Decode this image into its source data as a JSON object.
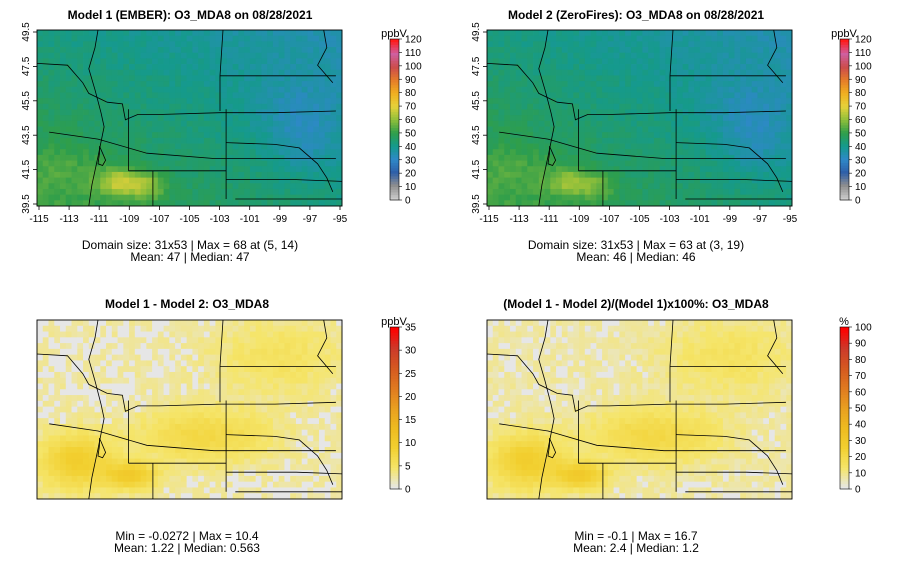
{
  "panels": [
    {
      "id": "p1",
      "title": "Model 1 (EMBER): O3_MDA8 on 08/28/2021",
      "unit": "ppbV",
      "colorbar_ticks": [
        "0",
        "10",
        "20",
        "30",
        "40",
        "50",
        "60",
        "70",
        "80",
        "90",
        "100",
        "110",
        "120"
      ],
      "lat_ticks": [
        "39.5",
        "41.5",
        "43.5",
        "45.5",
        "47.5",
        "49.5"
      ],
      "lon_ticks": [
        "-115",
        "-113",
        "-111",
        "-109",
        "-107",
        "-105",
        "-103",
        "-101",
        "-99",
        "-97",
        "-95"
      ],
      "stat_line1": "Domain size: 31x53 | Max = 68 at (5, 14)",
      "stat_line2": "Mean: 47 |  Median: 47",
      "field": "ember"
    },
    {
      "id": "p2",
      "title": "Model 2 (ZeroFires): O3_MDA8 on 08/28/2021",
      "unit": "ppbV",
      "colorbar_ticks": [
        "0",
        "10",
        "20",
        "30",
        "40",
        "50",
        "60",
        "70",
        "80",
        "90",
        "100",
        "110",
        "120"
      ],
      "lat_ticks": [
        "39.5",
        "41.5",
        "43.5",
        "45.5",
        "47.5",
        "49.5"
      ],
      "lon_ticks": [
        "-115",
        "-113",
        "-111",
        "-109",
        "-107",
        "-105",
        "-103",
        "-101",
        "-99",
        "-97",
        "-95"
      ],
      "stat_line1": "Domain size: 31x53 | Max = 63 at (3, 19)",
      "stat_line2": "Mean: 46 |  Median: 46",
      "field": "zerofires"
    },
    {
      "id": "p3",
      "title": "Model 1 - Model 2: O3_MDA8",
      "unit": "ppbV",
      "colorbar_ticks": [
        "0",
        "5",
        "10",
        "15",
        "20",
        "25",
        "30",
        "35"
      ],
      "stat_line1": "Min = -0.0272 | Max = 10.4",
      "stat_line2": "Mean: 1.22 |  Median: 0.563",
      "field": "diff"
    },
    {
      "id": "p4",
      "title": "(Model 1 - Model 2)/(Model 1)x100%: O3_MDA8",
      "unit": "%",
      "colorbar_ticks": [
        "0",
        "10",
        "20",
        "30",
        "40",
        "50",
        "60",
        "70",
        "80",
        "90",
        "100"
      ],
      "stat_line1": "Min = -0.1 | Max = 16.7",
      "stat_line2": "Mean: 2.4 |  Median: 1.2",
      "field": "pct"
    }
  ],
  "colors": {
    "background": "#ffffff",
    "diff_base": "#e6e6e6",
    "ozone_scale": [
      "#cccccc",
      "#8f8f8f",
      "#2e5fa8",
      "#2e88c8",
      "#159a8c",
      "#2f9e4a",
      "#8fbf3a",
      "#e6d23a",
      "#f0b020",
      "#e57c2a",
      "#cc4c4c",
      "#cf5fa0",
      "#ff1a1a"
    ],
    "diff_scale": [
      "#e6e6e6",
      "#f5e56a",
      "#f2d030",
      "#eebb20",
      "#e9a020",
      "#e07a20",
      "#d55a20",
      "#cc3a2a",
      "#ff0000"
    ]
  }
}
